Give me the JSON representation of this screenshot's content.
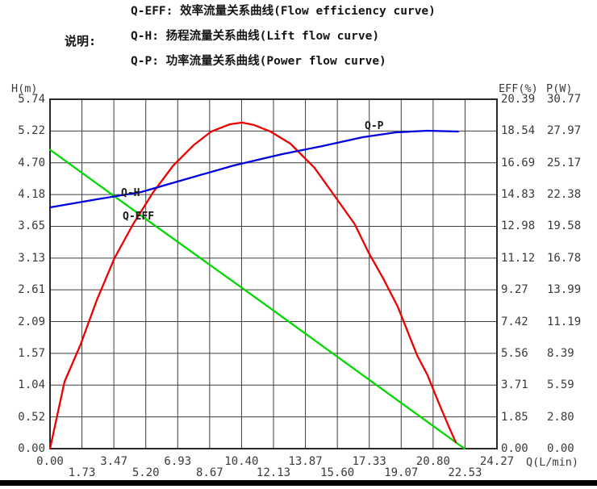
{
  "legend": {
    "label": "说明:",
    "lines": [
      "Q-EFF: 效率流量关系曲线(Flow efficiency curve)",
      "Q-H: 扬程流量关系曲线(Lift flow curve)",
      "Q-P: 功率流量关系曲线(Power flow curve)"
    ]
  },
  "axes": {
    "left": {
      "title": "H(m)",
      "ticks": [
        "5.74",
        "5.22",
        "4.70",
        "4.18",
        "3.65",
        "3.13",
        "2.61",
        "2.09",
        "1.57",
        "1.04",
        "0.52",
        "0.00"
      ]
    },
    "right_eff": {
      "title": "EFF(%)",
      "ticks": [
        "20.39",
        "18.54",
        "16.69",
        "14.83",
        "12.98",
        "11.12",
        "9.27",
        "7.42",
        "5.56",
        "3.71",
        "1.85",
        "0.00"
      ]
    },
    "right_p": {
      "title": "P(W)",
      "ticks": [
        "30.77",
        "27.97",
        "25.17",
        "22.38",
        "19.58",
        "16.78",
        "13.99",
        "11.19",
        "8.39",
        "5.59",
        "2.80",
        "0.00"
      ]
    },
    "x": {
      "title": "Q(L/min)",
      "ticks": [
        "0.00",
        "1.73",
        "3.47",
        "5.20",
        "6.93",
        "8.67",
        "10.40",
        "12.13",
        "13.87",
        "15.60",
        "17.33",
        "19.07",
        "20.80",
        "22.53",
        "24.27"
      ]
    }
  },
  "curve_labels": {
    "q_h": "Q-H",
    "q_eff": "Q-EFF",
    "q_p": "Q-P"
  },
  "colors": {
    "grid": "#3d3d3d",
    "frame": "#2a2a2a",
    "lift_curve": "#00d800",
    "efficiency_curve": "#ee0000",
    "power_curve": "#0000dd"
  },
  "chart_data": {
    "type": "line",
    "xlabel": "Q(L/min)",
    "x_max": 24.27,
    "x_ticks": [
      0.0,
      1.73,
      3.47,
      5.2,
      6.93,
      8.67,
      10.4,
      12.13,
      13.87,
      15.6,
      17.33,
      19.07,
      20.8,
      22.53,
      24.27
    ],
    "grid": true,
    "y_axes": [
      {
        "label": "H(m)",
        "min": 0,
        "max": 5.74,
        "side": "left"
      },
      {
        "label": "EFF(%)",
        "min": 0,
        "max": 20.39,
        "side": "right"
      },
      {
        "label": "P(W)",
        "min": 0,
        "max": 30.77,
        "side": "right"
      }
    ],
    "series": [
      {
        "name": "Q-H",
        "axis": "H(m)",
        "y_max": 5.74,
        "color": "#00d800",
        "points": [
          [
            0,
            4.91
          ],
          [
            5.63,
            3.68
          ],
          [
            11.26,
            2.46
          ],
          [
            16.88,
            1.23
          ],
          [
            22.51,
            0.0
          ]
        ]
      },
      {
        "name": "Q-EFF",
        "axis": "EFF(%)",
        "y_max": 20.39,
        "color": "#ee0000",
        "points": [
          [
            0,
            0
          ],
          [
            0.79,
            3.91
          ],
          [
            1.66,
            6.08
          ],
          [
            2.54,
            8.67
          ],
          [
            3.5,
            11.12
          ],
          [
            4.51,
            13.09
          ],
          [
            5.61,
            14.98
          ],
          [
            6.7,
            16.53
          ],
          [
            7.8,
            17.71
          ],
          [
            8.76,
            18.51
          ],
          [
            9.77,
            18.93
          ],
          [
            10.42,
            19.03
          ],
          [
            11.08,
            18.89
          ],
          [
            11.96,
            18.51
          ],
          [
            13.05,
            17.8
          ],
          [
            14.36,
            16.39
          ],
          [
            15.46,
            14.74
          ],
          [
            16.55,
            13.09
          ],
          [
            17.3,
            11.44
          ],
          [
            18.09,
            9.94
          ],
          [
            18.88,
            8.29
          ],
          [
            19.93,
            5.46
          ],
          [
            20.5,
            4.29
          ],
          [
            21.16,
            2.54
          ],
          [
            21.68,
            1.22
          ],
          [
            22.03,
            0.38
          ]
        ]
      },
      {
        "name": "Q-P",
        "axis": "P(W)",
        "y_max": 30.77,
        "color": "#0000dd",
        "points": [
          [
            0,
            21.25
          ],
          [
            2.54,
            21.96
          ],
          [
            4.95,
            22.6
          ],
          [
            7.36,
            23.73
          ],
          [
            9.99,
            24.94
          ],
          [
            12.61,
            25.94
          ],
          [
            14.8,
            26.65
          ],
          [
            16.99,
            27.43
          ],
          [
            18.75,
            27.85
          ],
          [
            20.5,
            28.0
          ],
          [
            22.16,
            27.93
          ]
        ]
      }
    ]
  }
}
